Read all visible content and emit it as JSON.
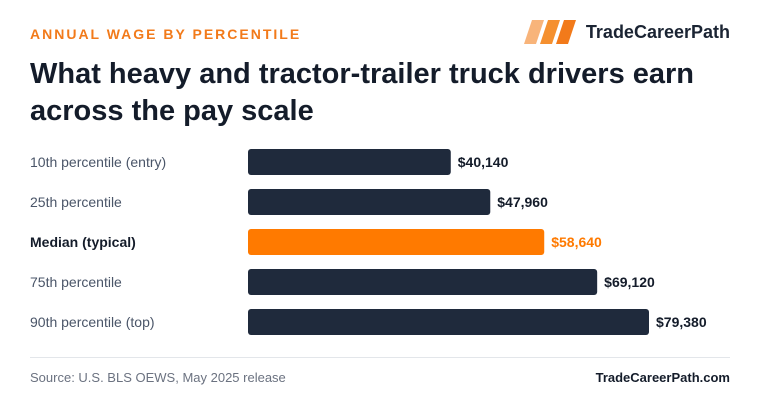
{
  "header": {
    "eyebrow": "ANNUAL WAGE BY PERCENTILE",
    "brand_name": "TradeCareerPath",
    "title": "What heavy and tractor-trailer truck drivers earn across the pay scale"
  },
  "chart_data": {
    "type": "bar",
    "orientation": "horizontal",
    "categories": [
      "10th percentile (entry)",
      "25th percentile",
      "Median (typical)",
      "75th percentile",
      "90th percentile (top)"
    ],
    "values": [
      40140,
      47960,
      58640,
      69120,
      79380
    ],
    "value_labels": [
      "$40,140",
      "$47,960",
      "$58,640",
      "$69,120",
      "$79,380"
    ],
    "highlight_index": 2,
    "xlim": [
      0,
      79380
    ],
    "grid": false,
    "colors": {
      "bar": "#1f2a3c",
      "highlight": "#ff7a00",
      "label": "#4a5568",
      "value": "#141c2a"
    }
  },
  "footer": {
    "source": "Source: U.S. BLS OEWS, May 2025 release",
    "site": "TradeCareerPath.com"
  }
}
